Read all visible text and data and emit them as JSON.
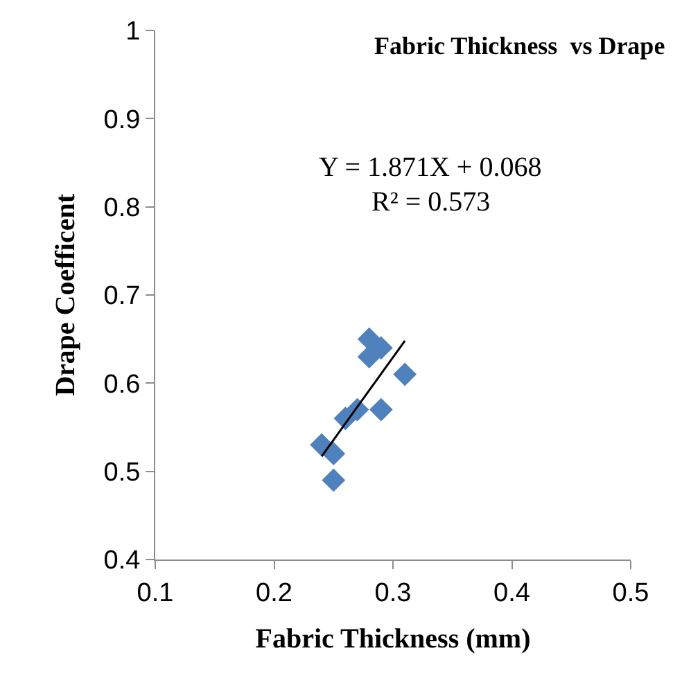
{
  "chart_data": {
    "type": "scatter",
    "title": "Fabric Thickness  vs Drape",
    "xlabel": "Fabric Thickness (mm)",
    "ylabel": "Drape Coefficent",
    "x": [
      0.24,
      0.25,
      0.25,
      0.26,
      0.27,
      0.29,
      0.28,
      0.29,
      0.28,
      0.31
    ],
    "series": [
      {
        "color": "#4f81bd",
        "marker": "diamond",
        "values": [
          0.53,
          0.52,
          0.49,
          0.56,
          0.57,
          0.57,
          0.65,
          0.64,
          0.63,
          0.61
        ]
      },
      {
        "type": "line",
        "color": "#000000",
        "x": [
          0.24,
          0.31
        ],
        "values": [
          0.517,
          0.648
        ],
        "marker": "none",
        "line_style": "solid"
      }
    ],
    "annotations": [
      "Y = 1.871X + 0.068",
      "R² = 0.573"
    ],
    "xlim": [
      0.1,
      0.5
    ],
    "xticks": [
      0.1,
      0.2,
      0.3,
      0.4,
      0.5
    ],
    "ylim": [
      0.4,
      1
    ],
    "yticks": [
      0.4,
      0.5,
      0.6,
      0.7,
      0.8,
      0.9,
      1
    ]
  }
}
